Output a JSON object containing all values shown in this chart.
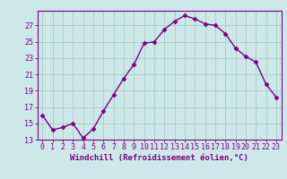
{
  "x": [
    0,
    1,
    2,
    3,
    4,
    5,
    6,
    7,
    8,
    9,
    10,
    11,
    12,
    13,
    14,
    15,
    16,
    17,
    18,
    19,
    20,
    21,
    22,
    23
  ],
  "y": [
    16.0,
    14.2,
    14.5,
    15.0,
    13.2,
    14.3,
    16.5,
    18.5,
    20.5,
    22.2,
    24.8,
    25.0,
    26.5,
    27.5,
    28.2,
    27.8,
    27.2,
    27.0,
    26.0,
    24.2,
    23.2,
    22.5,
    19.8,
    18.2
  ],
  "line_color": "#800080",
  "marker": "D",
  "marker_size": 2.5,
  "bg_color": "#cce8e8",
  "grid_color": "#aacccc",
  "xlabel": "Windchill (Refroidissement éolien,°C)",
  "ylabel": "",
  "ylim": [
    13,
    28
  ],
  "xlim": [
    -0.5,
    23.5
  ],
  "yticks": [
    13,
    15,
    17,
    19,
    21,
    23,
    25,
    27
  ],
  "xticks": [
    0,
    1,
    2,
    3,
    4,
    5,
    6,
    7,
    8,
    9,
    10,
    11,
    12,
    13,
    14,
    15,
    16,
    17,
    18,
    19,
    20,
    21,
    22,
    23
  ],
  "title_color": "#800080",
  "axis_color": "#800080",
  "xlabel_fontsize": 6.5,
  "tick_fontsize": 6.0,
  "line_width": 1.0
}
